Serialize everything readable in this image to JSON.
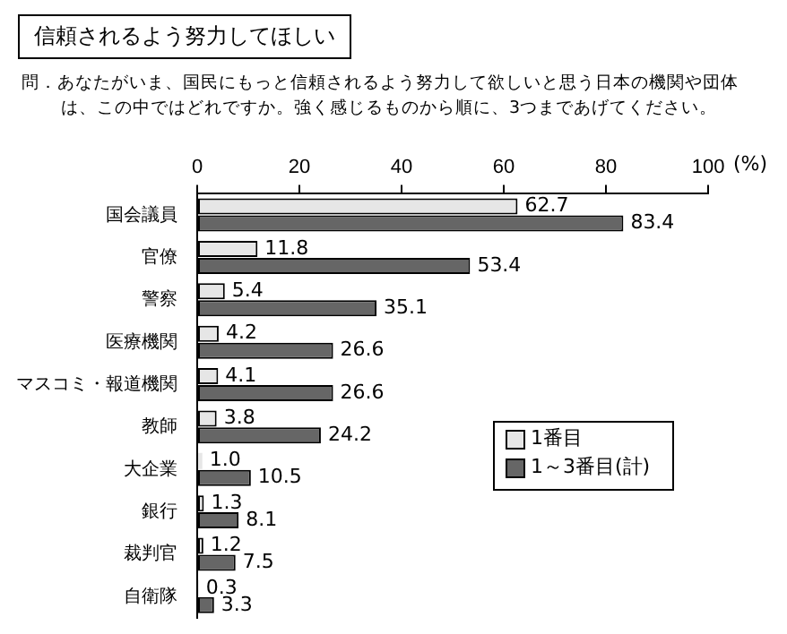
{
  "chart_data": {
    "type": "bar",
    "orientation": "horizontal",
    "title": "信頼されるよう努力してほしい",
    "subtitle": "問．あなたがいま、国民にもっと信頼されるよう努力して欲しいと思う日本の機関や団体は、この中ではどれですか。強く感じるものから順に、3つまであげてください。",
    "xlabel": "(%)",
    "categories": [
      "国会議員",
      "官僚",
      "警察",
      "医療機関",
      "マスコミ・報道機関",
      "教師",
      "大企業",
      "銀行",
      "裁判官",
      "自衛隊"
    ],
    "series": [
      {
        "name": "1番目",
        "color": "#e6e6e6",
        "values": [
          62.7,
          11.8,
          5.4,
          4.2,
          4.1,
          3.8,
          1.0,
          1.3,
          1.2,
          0.3
        ],
        "value_labels": [
          "62.7",
          "11.8",
          "5.4",
          "4.2",
          "4.1",
          "3.8",
          "1.0",
          "1.3",
          "1.2",
          "0.3"
        ]
      },
      {
        "name": "1～3番目(計)",
        "color": "#666666",
        "values": [
          83.4,
          53.4,
          35.1,
          26.6,
          26.6,
          24.2,
          10.5,
          8.1,
          7.5,
          3.3
        ],
        "value_labels": [
          "83.4",
          "53.4",
          "35.1",
          "26.6",
          "26.6",
          "24.2",
          "10.5",
          "8.1",
          "7.5",
          "3.3"
        ]
      }
    ],
    "xlim": [
      0,
      100
    ],
    "xticks": [
      0,
      20,
      40,
      60,
      80,
      100
    ],
    "legend": "bottom right"
  }
}
